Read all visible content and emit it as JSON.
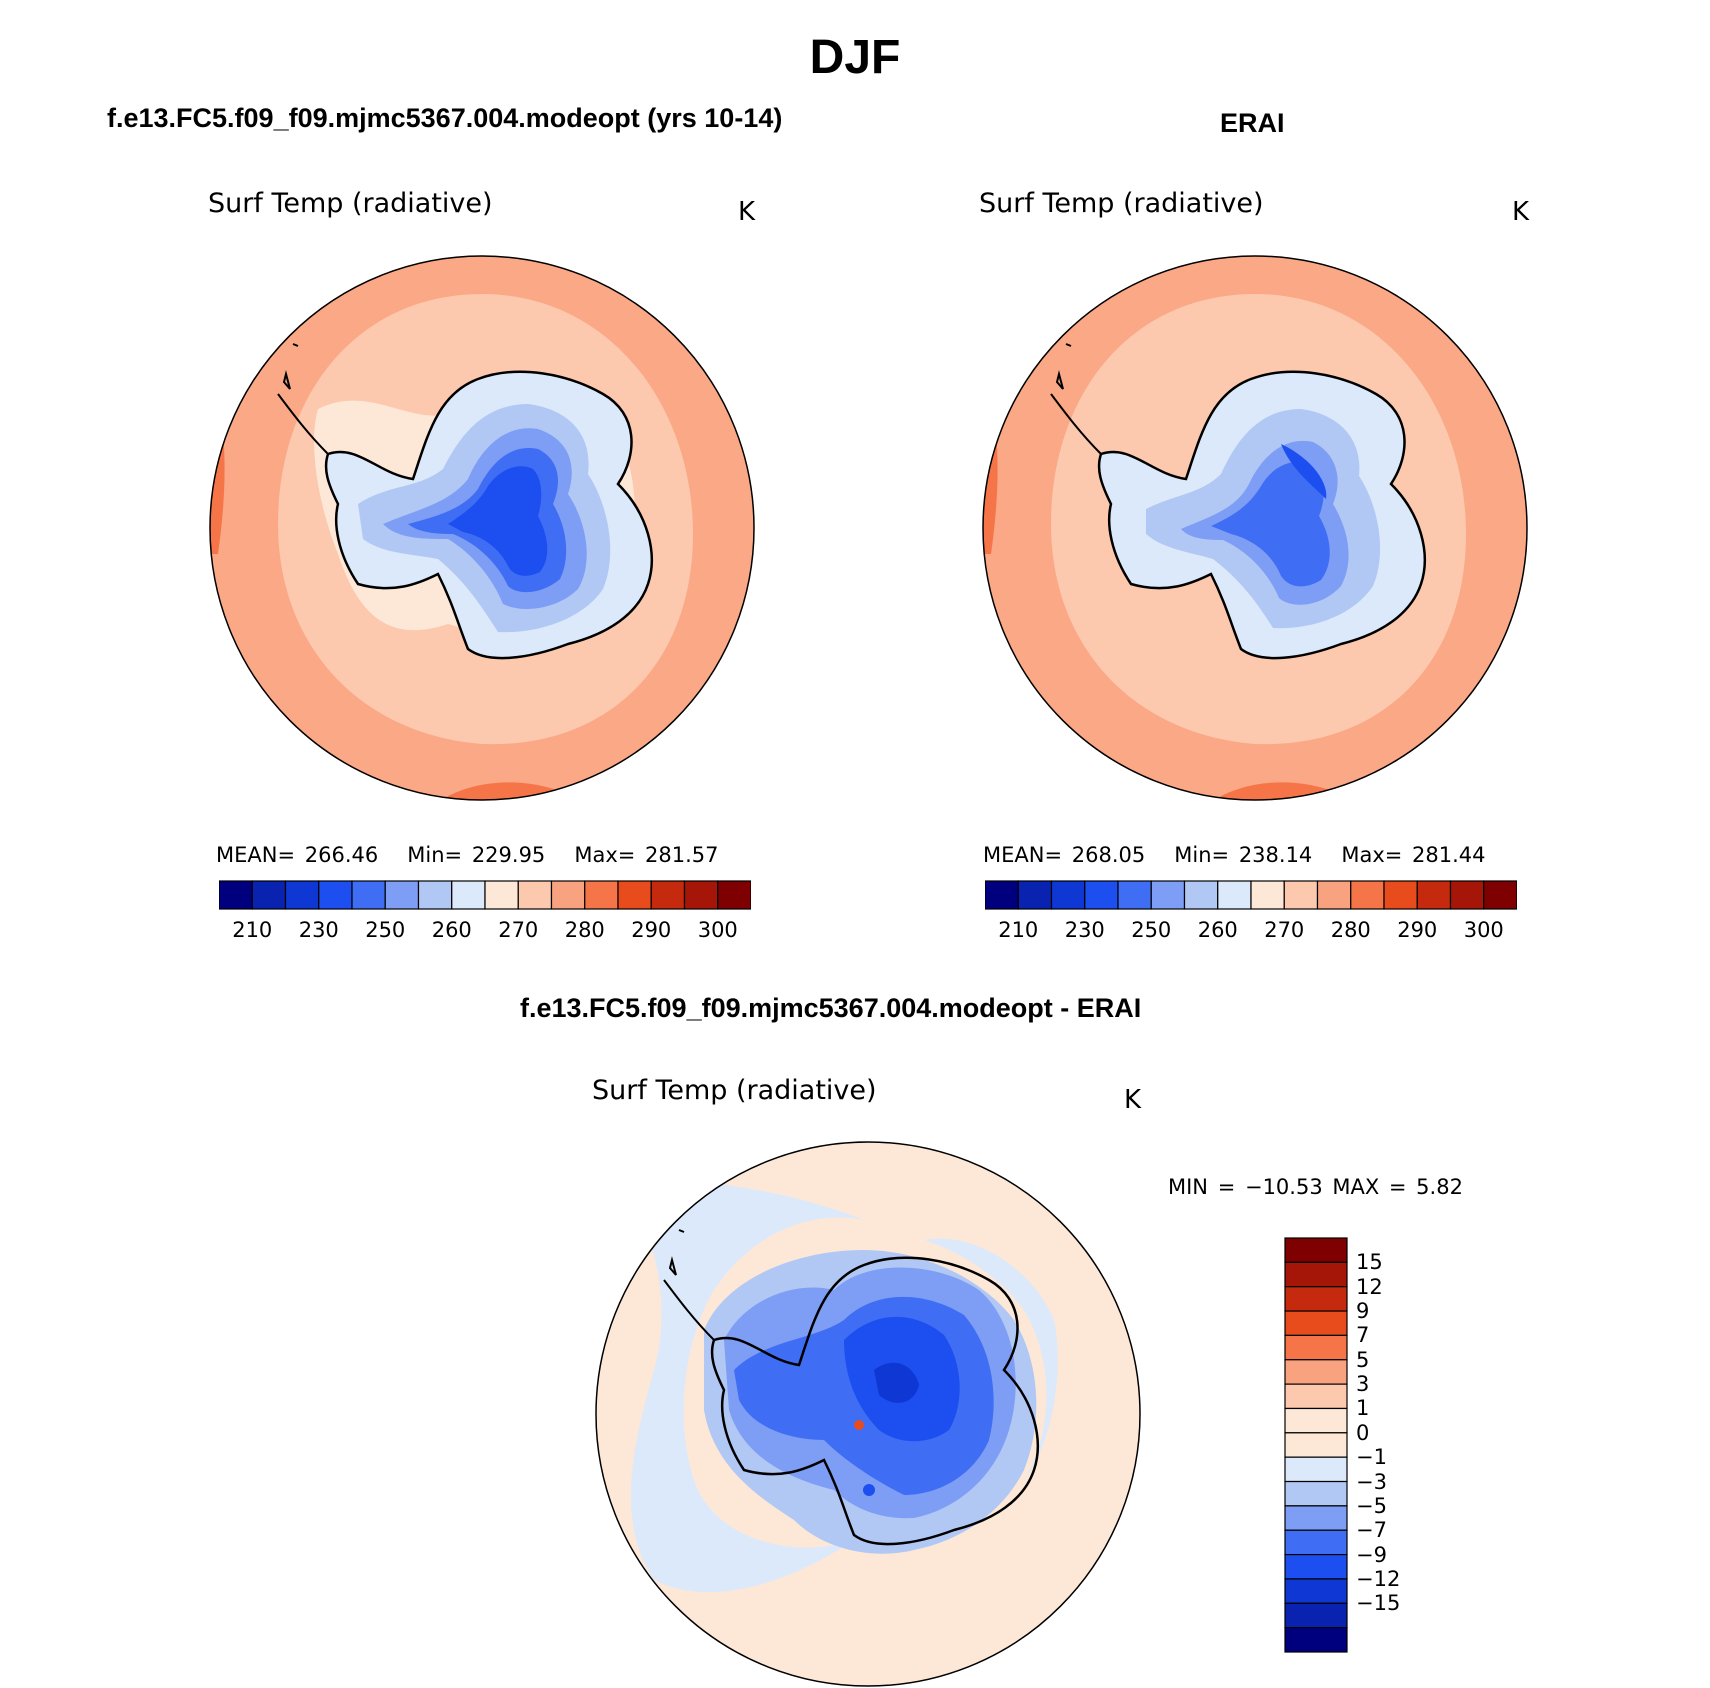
{
  "figure_title": "DJF",
  "panels": [
    {
      "id": "model",
      "heading": "f.e13.FC5.f09_f09.mjmc5367.004.modeopt (yrs 10-14)",
      "variable": "Surf Temp (radiative)",
      "units": "K",
      "stats": {
        "mean_label": "MEAN=",
        "mean": "266.46",
        "min_label": "Min=",
        "min": "229.95",
        "max_label": "Max=",
        "max": "281.57"
      },
      "colorbar_ticks": [
        "210",
        "230",
        "250",
        "260",
        "270",
        "280",
        "290",
        "300"
      ]
    },
    {
      "id": "obs",
      "heading": "ERAI",
      "variable": "Surf Temp (radiative)",
      "units": "K",
      "stats": {
        "mean_label": "MEAN=",
        "mean": "268.05",
        "min_label": "Min=",
        "min": "238.14",
        "max_label": "Max=",
        "max": "281.44"
      },
      "colorbar_ticks": [
        "210",
        "230",
        "250",
        "260",
        "270",
        "280",
        "290",
        "300"
      ]
    }
  ],
  "diff_panel": {
    "heading": "f.e13.FC5.f09_f09.mjmc5367.004.modeopt - ERAI",
    "variable": "Surf Temp (radiative)",
    "units": "K",
    "minmax_text": "MIN = −10.53 MAX =    5.82",
    "colorbar_ticks": [
      "15",
      "12",
      "9",
      "7",
      "5",
      "3",
      "1",
      "0",
      "−1",
      "−3",
      "−5",
      "−7",
      "−9",
      "−12",
      "−15"
    ]
  },
  "colors": {
    "abs_scale": [
      "#00007f",
      "#0a22b0",
      "#0f37d4",
      "#1d4ef0",
      "#3f6ef4",
      "#7d9ef4",
      "#b1c8f5",
      "#dce9fa",
      "#fde8d8",
      "#fcc8ae",
      "#f9a27f",
      "#f57548",
      "#e84b1c",
      "#c52a0e",
      "#a51508",
      "#7f0000"
    ],
    "diff_scale": [
      "#00007f",
      "#0a22b0",
      "#0f37d4",
      "#1d4ef0",
      "#3f6ef4",
      "#7d9ef4",
      "#b1c8f5",
      "#dce9fa",
      "#fde8d8",
      "#fcc8ae",
      "#f9a27f",
      "#f57548",
      "#e84b1c",
      "#c52a0e",
      "#7f0000"
    ]
  }
}
